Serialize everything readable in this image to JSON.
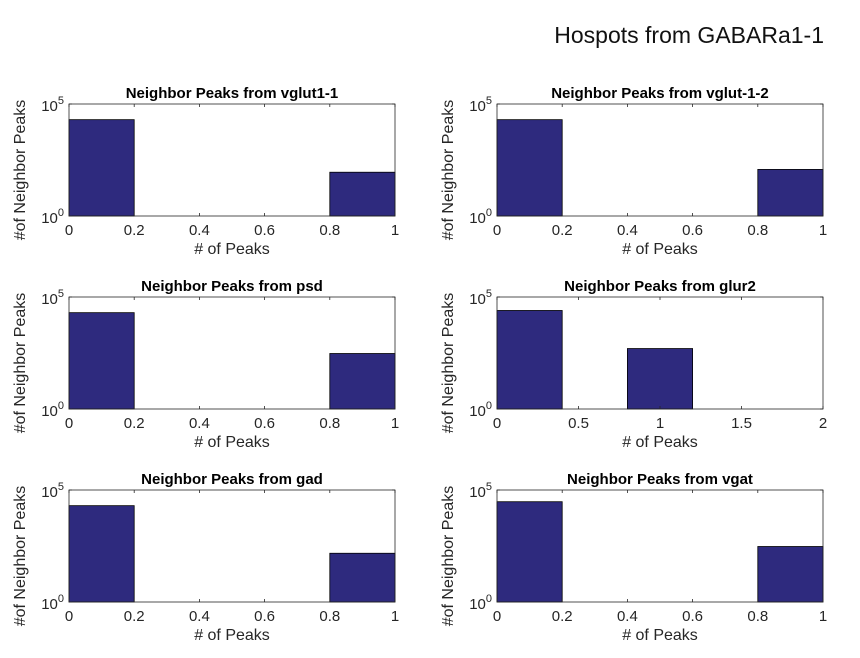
{
  "figure": {
    "title": "Hospots from GABARa1-1"
  },
  "style": {
    "bar_fill": "#2e2a7e",
    "bar_edge": "#000000",
    "axis_color": "#262626"
  },
  "chart_data": [
    {
      "type": "bar",
      "title": "Neighbor Peaks from vglut1-1",
      "xlabel": "# of Peaks",
      "ylabel": "#of Neighbor Peaks",
      "yscale": "log",
      "ylim": [
        1,
        100000
      ],
      "xlim": [
        0,
        1
      ],
      "xticks": [
        "0",
        "0.2",
        "0.4",
        "0.6",
        "0.8",
        "1"
      ],
      "yticks": [
        "10^0",
        "10^5"
      ],
      "bars": [
        {
          "x0": 0,
          "x1": 0.2,
          "value": 20000
        },
        {
          "x0": 0.8,
          "x1": 1,
          "value": 90
        }
      ]
    },
    {
      "type": "bar",
      "title": "Neighbor Peaks from vglut-1-2",
      "xlabel": "# of Peaks",
      "ylabel": "#of Neighbor Peaks",
      "yscale": "log",
      "ylim": [
        1,
        100000
      ],
      "xlim": [
        0,
        1
      ],
      "xticks": [
        "0",
        "0.2",
        "0.4",
        "0.6",
        "0.8",
        "1"
      ],
      "yticks": [
        "10^0",
        "10^5"
      ],
      "bars": [
        {
          "x0": 0,
          "x1": 0.2,
          "value": 20000
        },
        {
          "x0": 0.8,
          "x1": 1,
          "value": 120
        }
      ]
    },
    {
      "type": "bar",
      "title": "Neighbor Peaks from psd",
      "xlabel": "# of Peaks",
      "ylabel": "#of Neighbor Peaks",
      "yscale": "log",
      "ylim": [
        1,
        100000
      ],
      "xlim": [
        0,
        1
      ],
      "xticks": [
        "0",
        "0.2",
        "0.4",
        "0.6",
        "0.8",
        "1"
      ],
      "yticks": [
        "10^0",
        "10^5"
      ],
      "bars": [
        {
          "x0": 0,
          "x1": 0.2,
          "value": 20000
        },
        {
          "x0": 0.8,
          "x1": 1,
          "value": 300
        }
      ]
    },
    {
      "type": "bar",
      "title": "Neighbor Peaks from glur2",
      "xlabel": "# of Peaks",
      "ylabel": "#of Neighbor Peaks",
      "yscale": "log",
      "ylim": [
        1,
        100000
      ],
      "xlim": [
        0,
        2
      ],
      "xticks": [
        "0",
        "0.5",
        "1",
        "1.5",
        "2"
      ],
      "yticks": [
        "10^0",
        "10^5"
      ],
      "bars": [
        {
          "x0": 0,
          "x1": 0.4,
          "value": 25000
        },
        {
          "x0": 0.8,
          "x1": 1.2,
          "value": 500
        }
      ]
    },
    {
      "type": "bar",
      "title": "Neighbor Peaks from gad",
      "xlabel": "# of Peaks",
      "ylabel": "#of Neighbor Peaks",
      "yscale": "log",
      "ylim": [
        1,
        100000
      ],
      "xlim": [
        0,
        1
      ],
      "xticks": [
        "0",
        "0.2",
        "0.4",
        "0.6",
        "0.8",
        "1"
      ],
      "yticks": [
        "10^0",
        "10^5"
      ],
      "bars": [
        {
          "x0": 0,
          "x1": 0.2,
          "value": 20000
        },
        {
          "x0": 0.8,
          "x1": 1,
          "value": 150
        }
      ]
    },
    {
      "type": "bar",
      "title": "Neighbor Peaks from vgat",
      "xlabel": "# of Peaks",
      "ylabel": "#of Neighbor Peaks",
      "yscale": "log",
      "ylim": [
        1,
        100000
      ],
      "xlim": [
        0,
        1
      ],
      "xticks": [
        "0",
        "0.2",
        "0.4",
        "0.6",
        "0.8",
        "1"
      ],
      "yticks": [
        "10^0",
        "10^5"
      ],
      "bars": [
        {
          "x0": 0,
          "x1": 0.2,
          "value": 30000
        },
        {
          "x0": 0.8,
          "x1": 1,
          "value": 300
        }
      ]
    }
  ]
}
